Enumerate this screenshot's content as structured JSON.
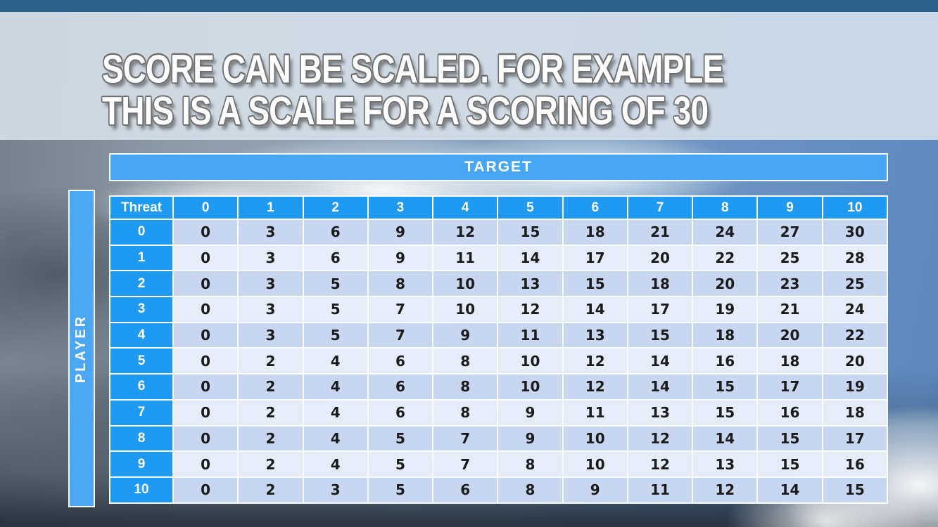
{
  "title": {
    "line1": "SCORE CAN BE SCALED. FOR EXAMPLE",
    "line2": "THIS IS A SCALE FOR A SCORING OF 30"
  },
  "scoring_table": {
    "target_label": "TARGET",
    "player_label": "PLAYER",
    "corner_label": "Threat",
    "target_values": [
      "0",
      "1",
      "2",
      "3",
      "4",
      "5",
      "6",
      "7",
      "8",
      "9",
      "10"
    ],
    "player_values": [
      "0",
      "1",
      "2",
      "3",
      "4",
      "5",
      "6",
      "7",
      "8",
      "9",
      "10"
    ],
    "scores": [
      [
        0,
        3,
        6,
        9,
        12,
        15,
        18,
        21,
        24,
        27,
        30
      ],
      [
        0,
        3,
        6,
        9,
        11,
        14,
        17,
        20,
        22,
        25,
        28
      ],
      [
        0,
        3,
        5,
        8,
        10,
        13,
        15,
        18,
        20,
        23,
        25
      ],
      [
        0,
        3,
        5,
        7,
        10,
        12,
        14,
        17,
        19,
        21,
        24
      ],
      [
        0,
        3,
        5,
        7,
        9,
        11,
        13,
        15,
        18,
        20,
        22
      ],
      [
        0,
        2,
        4,
        6,
        8,
        10,
        12,
        14,
        16,
        18,
        20
      ],
      [
        0,
        2,
        4,
        6,
        8,
        10,
        12,
        14,
        15,
        17,
        19
      ],
      [
        0,
        2,
        4,
        6,
        8,
        9,
        11,
        13,
        15,
        16,
        18
      ],
      [
        0,
        2,
        4,
        5,
        7,
        9,
        10,
        12,
        14,
        15,
        17
      ],
      [
        0,
        2,
        4,
        5,
        7,
        8,
        10,
        12,
        13,
        15,
        16
      ],
      [
        0,
        2,
        3,
        5,
        6,
        8,
        9,
        11,
        12,
        14,
        15
      ]
    ]
  },
  "colors": {
    "header_blue": "#1E9AF2",
    "target_bar_blue": "#47A7F5",
    "player_bar_blue": "#4BA7F2",
    "row_shade_dark": "#C9D6F0",
    "row_shade_light": "#E7ECF9",
    "top_strip_blue": "#2E6189",
    "score_text": "#1B1B1B"
  }
}
